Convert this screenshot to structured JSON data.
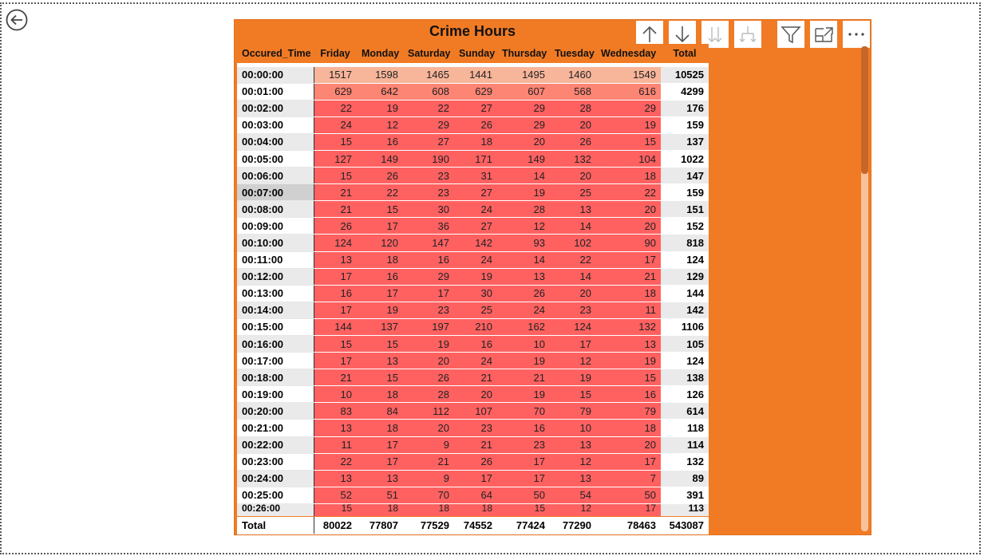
{
  "title": "Crime Hours",
  "columns": [
    "Occured_Time",
    "Friday",
    "Monday",
    "Saturday",
    "Sunday",
    "Thursday",
    "Tuesday",
    "Wednesday",
    "Total"
  ],
  "rows": [
    {
      "time": "00:00:00",
      "vals": [
        1517,
        1598,
        1465,
        1441,
        1495,
        1460,
        1549
      ],
      "total": 10525
    },
    {
      "time": "00:01:00",
      "vals": [
        629,
        642,
        608,
        629,
        607,
        568,
        616
      ],
      "total": 4299
    },
    {
      "time": "00:02:00",
      "vals": [
        22,
        19,
        22,
        27,
        29,
        28,
        29
      ],
      "total": 176
    },
    {
      "time": "00:03:00",
      "vals": [
        24,
        12,
        29,
        26,
        29,
        20,
        19
      ],
      "total": 159
    },
    {
      "time": "00:04:00",
      "vals": [
        15,
        16,
        27,
        18,
        20,
        26,
        15
      ],
      "total": 137
    },
    {
      "time": "00:05:00",
      "vals": [
        127,
        149,
        190,
        171,
        149,
        132,
        104
      ],
      "total": 1022
    },
    {
      "time": "00:06:00",
      "vals": [
        15,
        26,
        23,
        31,
        14,
        20,
        18
      ],
      "total": 147
    },
    {
      "time": "00:07:00",
      "vals": [
        21,
        22,
        23,
        27,
        19,
        25,
        22
      ],
      "total": 159
    },
    {
      "time": "00:08:00",
      "vals": [
        21,
        15,
        30,
        24,
        28,
        13,
        20
      ],
      "total": 151
    },
    {
      "time": "00:09:00",
      "vals": [
        26,
        17,
        36,
        27,
        12,
        14,
        20
      ],
      "total": 152
    },
    {
      "time": "00:10:00",
      "vals": [
        124,
        120,
        147,
        142,
        93,
        102,
        90
      ],
      "total": 818
    },
    {
      "time": "00:11:00",
      "vals": [
        13,
        18,
        16,
        24,
        14,
        22,
        17
      ],
      "total": 124
    },
    {
      "time": "00:12:00",
      "vals": [
        17,
        16,
        29,
        19,
        13,
        14,
        21
      ],
      "total": 129
    },
    {
      "time": "00:13:00",
      "vals": [
        16,
        17,
        17,
        30,
        26,
        20,
        18
      ],
      "total": 144
    },
    {
      "time": "00:14:00",
      "vals": [
        17,
        19,
        23,
        25,
        24,
        23,
        11
      ],
      "total": 142
    },
    {
      "time": "00:15:00",
      "vals": [
        144,
        137,
        197,
        210,
        162,
        124,
        132
      ],
      "total": 1106
    },
    {
      "time": "00:16:00",
      "vals": [
        15,
        15,
        19,
        16,
        10,
        17,
        13
      ],
      "total": 105
    },
    {
      "time": "00:17:00",
      "vals": [
        17,
        13,
        20,
        24,
        19,
        12,
        19
      ],
      "total": 124
    },
    {
      "time": "00:18:00",
      "vals": [
        21,
        15,
        26,
        21,
        21,
        19,
        15
      ],
      "total": 138
    },
    {
      "time": "00:19:00",
      "vals": [
        10,
        18,
        28,
        20,
        19,
        15,
        16
      ],
      "total": 126
    },
    {
      "time": "00:20:00",
      "vals": [
        83,
        84,
        112,
        107,
        70,
        79,
        79
      ],
      "total": 614
    },
    {
      "time": "00:21:00",
      "vals": [
        13,
        18,
        20,
        23,
        16,
        10,
        18
      ],
      "total": 118
    },
    {
      "time": "00:22:00",
      "vals": [
        11,
        17,
        9,
        21,
        23,
        13,
        20
      ],
      "total": 114
    },
    {
      "time": "00:23:00",
      "vals": [
        22,
        17,
        21,
        26,
        17,
        12,
        17
      ],
      "total": 132
    },
    {
      "time": "00:24:00",
      "vals": [
        13,
        13,
        9,
        17,
        17,
        13,
        7
      ],
      "total": 89
    },
    {
      "time": "00:25:00",
      "vals": [
        52,
        51,
        70,
        64,
        50,
        54,
        50
      ],
      "total": 391
    },
    {
      "time": "00:26:00",
      "vals": [
        15,
        18,
        18,
        18,
        15,
        12,
        17
      ],
      "total": 113
    }
  ],
  "footer": {
    "label": "Total",
    "vals": [
      80022,
      77807,
      77529,
      74552,
      77424,
      77290,
      78463
    ],
    "total": 543087
  },
  "colors": {
    "accent": "#f17b24",
    "cell_high": "#f7b59a",
    "cell_mid": "#fd8574",
    "cell_low": "#ff6161"
  },
  "icons": [
    "back-arrow-icon",
    "drill-up-icon",
    "drill-down-icon",
    "expand-next-level-icon",
    "expand-all-icon",
    "filter-icon",
    "focus-mode-icon",
    "more-options-icon"
  ]
}
